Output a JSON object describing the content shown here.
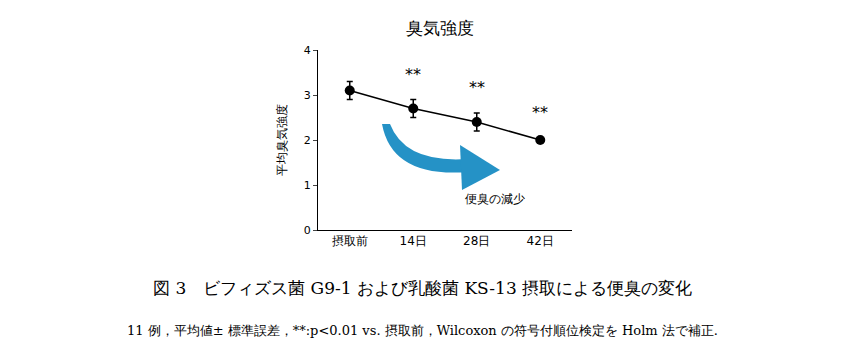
{
  "chart_data": {
    "type": "line",
    "title": "臭気強度",
    "y_label": "平均臭気強度",
    "categories": [
      "摂取前",
      "14日",
      "28日",
      "42日"
    ],
    "values": [
      3.1,
      2.7,
      2.4,
      2.0
    ],
    "error": [
      0.2,
      0.2,
      0.2,
      0.05
    ],
    "color": "#000000",
    "marker": "circle",
    "line_style": "solid",
    "ylim": [
      0,
      4
    ],
    "yticks": [
      0,
      1,
      2,
      3,
      4
    ],
    "annotations": [
      {
        "category": "14日",
        "text": "**"
      },
      {
        "category": "28日",
        "text": "**"
      },
      {
        "category": "42日",
        "text": "**"
      }
    ],
    "arrow_label": "便臭の減少",
    "caption": "図 3　ビフィズス菌 G9-1 および乳酸菌 KS-13 摂取による便臭の変化",
    "note": "11 例，平均値± 標準誤差，**:p<0.01 vs. 摂取前，Wilcoxon の符号付順位検定を Holm 法で補正."
  }
}
